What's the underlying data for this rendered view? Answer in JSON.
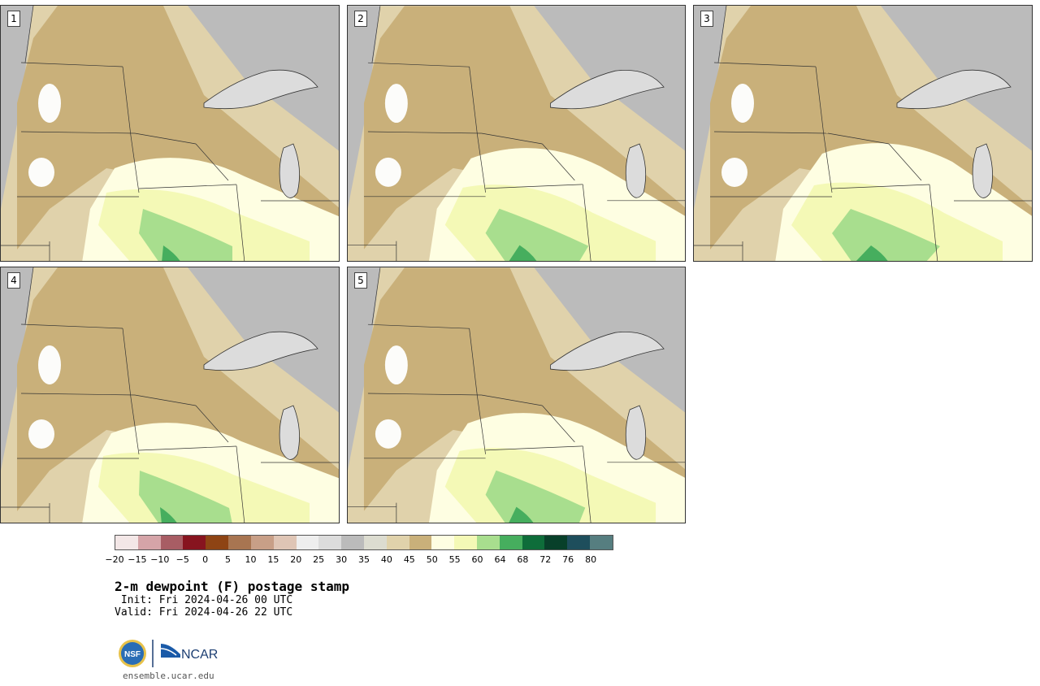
{
  "panels": [
    {
      "label": "1"
    },
    {
      "label": "2"
    },
    {
      "label": "3"
    },
    {
      "label": "4"
    },
    {
      "label": "5"
    }
  ],
  "colorbar": {
    "colors": [
      "#f3e7e7",
      "#d5a4a8",
      "#a85d64",
      "#87141f",
      "#8e4414",
      "#a87551",
      "#c89f87",
      "#dfc5b5",
      "#eeeeee",
      "#dcdcdc",
      "#bbbbbb",
      "#dcdcd0",
      "#e0d2ab",
      "#c9b07a",
      "#fefee2",
      "#f4f9b6",
      "#a8de8e",
      "#46ae5e",
      "#0e6d3a",
      "#08402a",
      "#1e4e5c",
      "#567e80"
    ],
    "ticks": [
      "−20",
      "−15",
      "−10",
      "−5",
      "0",
      "5",
      "10",
      "15",
      "20",
      "25",
      "30",
      "35",
      "40",
      "45",
      "50",
      "55",
      "60",
      "64",
      "68",
      "72",
      "76",
      "80"
    ]
  },
  "title": "2-m dewpoint (F) postage stamp",
  "init": " Init: Fri 2024-04-26 00 UTC",
  "valid": "Valid: Fri 2024-04-26 22 UTC",
  "logos": {
    "nsf": "NSF",
    "ncar": "NCAR"
  },
  "site": "ensemble.ucar.edu",
  "map_fill_colors": {
    "dry_gray": "#bbbbbb",
    "light_gray": "#dcdcdc",
    "tan": "#e0d2ab",
    "brown": "#c9b07a",
    "cream": "#fefee2",
    "pale_yellow": "#f4f9b6",
    "light_green": "#a8de8e",
    "green": "#46ae5e",
    "white": "#fcfcfa"
  }
}
